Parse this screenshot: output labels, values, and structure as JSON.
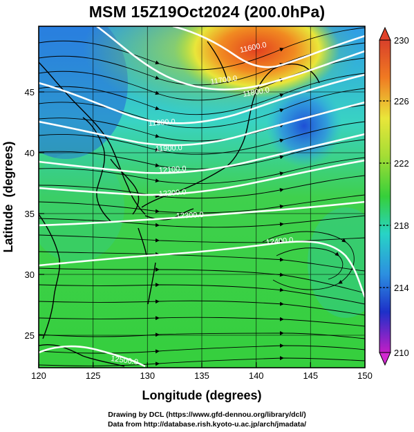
{
  "title": "MSM 15Z19Oct2024 (200.0hPa)",
  "x_axis": {
    "label": "Longitude (degrees)",
    "ticks": [
      "120",
      "125",
      "130",
      "135",
      "140",
      "145",
      "150"
    ]
  },
  "y_axis": {
    "label": "Latitude  (degrees)",
    "ticks": [
      "25",
      "30",
      "35",
      "40",
      "45"
    ]
  },
  "colorbar": {
    "labels": [
      "230",
      "226",
      "222",
      "218",
      "214",
      "210"
    ]
  },
  "contour_labels": [
    "11600.0",
    "11700.0",
    "11800.0",
    "11900.0",
    "11900.0",
    "12100.0",
    "12200.0",
    "12300.0",
    "12400.0",
    "12500.0"
  ],
  "credits": {
    "line1": "Drawing by DCL (https://www.gfd-dennou.org/library/dcl/)",
    "line2": "Data from http://database.rish.kyoto-u.ac.jp/arch/jmadata/"
  },
  "colors": {
    "orange_red": "#e8411f",
    "yellow": "#e9e63a",
    "green": "#34cf3a",
    "cyan": "#2ad6c8",
    "blue": "#1e55d8",
    "magenta": "#d62bd0"
  }
}
